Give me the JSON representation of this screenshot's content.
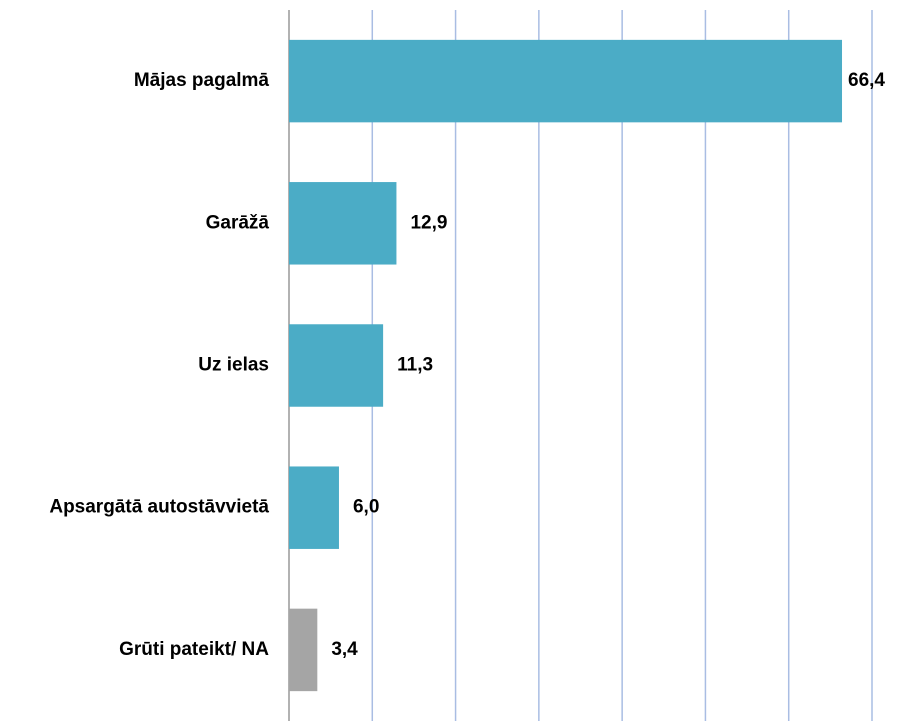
{
  "chart_data": {
    "type": "barh",
    "categories": [
      "Mājas pagalmā",
      "Garāžā",
      "Uz ielas",
      "Apsargātā autostāvvietā",
      "Grūti pateikt/ NA"
    ],
    "values": [
      66.4,
      12.9,
      11.3,
      6.0,
      3.4
    ],
    "value_labels": [
      "66,4",
      "12,9",
      "11,3",
      "6,0",
      "3,4"
    ],
    "colors": [
      "#4bacc6",
      "#4bacc6",
      "#4bacc6",
      "#4bacc6",
      "#a5a5a5"
    ],
    "xlim": [
      0,
      70
    ],
    "xticks": [
      0,
      10,
      20,
      30,
      40,
      50,
      60,
      70
    ],
    "grid": true
  }
}
